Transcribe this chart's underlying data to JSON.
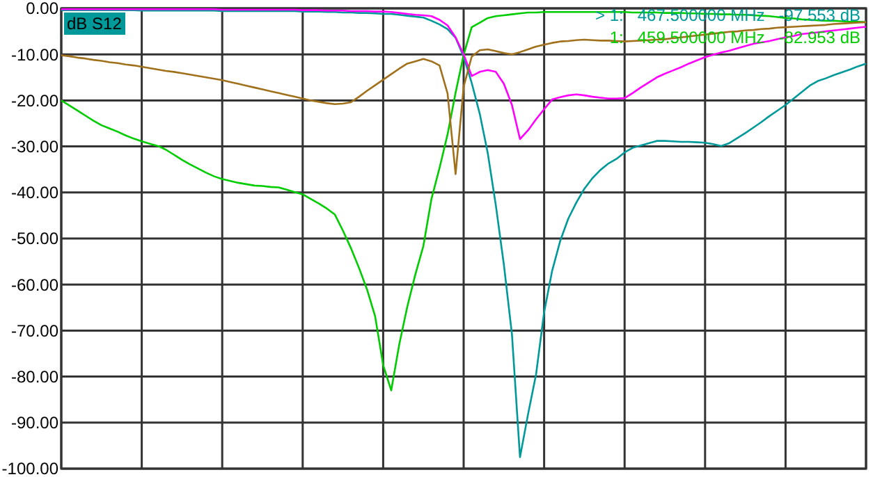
{
  "chart_data": {
    "type": "line",
    "ylim": [
      -100,
      0
    ],
    "categories": [
      null,
      null,
      null,
      null,
      null,
      null,
      null,
      null,
      null,
      null,
      null,
      null,
      null,
      null,
      null,
      null,
      null,
      null,
      null,
      null,
      null,
      null,
      null,
      null,
      null,
      null,
      null,
      null,
      null,
      null,
      null,
      null,
      null,
      null,
      null,
      null,
      null,
      null,
      null,
      null,
      null,
      null,
      null,
      null,
      null,
      null,
      null,
      null,
      null,
      null,
      null,
      null,
      null,
      null,
      null,
      null,
      null,
      null,
      null,
      null,
      null,
      null,
      null,
      null,
      null,
      null,
      null,
      null,
      null,
      null,
      null,
      null,
      null,
      null,
      null,
      null,
      null,
      null,
      null,
      null,
      null,
      null,
      null,
      null,
      null,
      null,
      null,
      null,
      null,
      null,
      null,
      null,
      null,
      null,
      null,
      null,
      null,
      null,
      null,
      null,
      null
    ],
    "yticks": [
      {
        "value": 0,
        "label": "0.00"
      },
      {
        "value": -10,
        "label": "-10.00"
      },
      {
        "value": -20,
        "label": "-20.00"
      },
      {
        "value": -30,
        "label": "-30.00"
      },
      {
        "value": -40,
        "label": "-40.00"
      },
      {
        "value": -50,
        "label": "-50.00"
      },
      {
        "value": -60,
        "label": "-60.00"
      },
      {
        "value": -70,
        "label": "-70.00"
      },
      {
        "value": -80,
        "label": "-80.00"
      },
      {
        "value": -90,
        "label": "-90.00"
      },
      {
        "value": -100,
        "label": "-100.00"
      }
    ],
    "tick_labels": "y",
    "grid": true,
    "marker": "none",
    "line_style": "solid",
    "series": [
      {
        "color": "#009999",
        "values": [
          -0.4,
          -0.4,
          -0.4,
          -0.4,
          -0.4,
          -0.4,
          -0.4,
          -0.4,
          -0.4,
          -0.4,
          -0.5,
          -0.5,
          -0.5,
          -0.5,
          -0.5,
          -0.5,
          -0.5,
          -0.5,
          -0.5,
          -0.5,
          -0.6,
          -0.6,
          -0.6,
          -0.6,
          -0.6,
          -0.6,
          -0.6,
          -0.6,
          -0.6,
          -0.6,
          -0.7,
          -0.7,
          -0.7,
          -0.8,
          -0.8,
          -0.9,
          -0.9,
          -1.0,
          -1.0,
          -1.1,
          -1.2,
          -1.2,
          -1.4,
          -1.6,
          -1.8,
          -2.0,
          -2.7,
          -3.5,
          -4.5,
          -6.4,
          -10.5,
          -16.2,
          -22.9,
          -31.5,
          -42.8,
          -55.7,
          -70.8,
          -97.5,
          -88.2,
          -79.5,
          -66,
          -57,
          -50.5,
          -45.7,
          -42.2,
          -39.2,
          -36.9,
          -35.1,
          -33.7,
          -32.7,
          -31.3,
          -30.3,
          -29.8,
          -29.3,
          -28.8,
          -28.8,
          -28.9,
          -29.0,
          -29.0,
          -29.1,
          -29.2,
          -29.5,
          -29.9,
          -29.3,
          -28.2,
          -27.1,
          -25.9,
          -24.7,
          -23.4,
          -22.2,
          -21,
          -19.6,
          -18.2,
          -16.8,
          -15.8,
          -15.2,
          -14.5,
          -13.9,
          -13.3,
          -12.6,
          -12
        ]
      },
      {
        "color": "#00cc00",
        "values": [
          -20,
          -21.1,
          -22.2,
          -23.3,
          -24.4,
          -25.4,
          -26.1,
          -26.8,
          -27.6,
          -28.3,
          -28.9,
          -29.4,
          -29.9,
          -30.7,
          -31.8,
          -32.9,
          -33.9,
          -34.8,
          -35.7,
          -36.5,
          -37.1,
          -37.5,
          -37.9,
          -38.2,
          -38.5,
          -38.6,
          -38.8,
          -38.9,
          -39.4,
          -39.9,
          -40.4,
          -41.4,
          -42.4,
          -43.5,
          -44.8,
          -48.3,
          -52.1,
          -56.4,
          -61.1,
          -66.9,
          -77.5,
          -83,
          -73,
          -64.8,
          -57.8,
          -51.6,
          -41.4,
          -34.7,
          -27.4,
          -18.3,
          -10.1,
          -4.1,
          -3.1,
          -2.1,
          -1.7,
          -1.5,
          -1.3,
          -1.1,
          -0.9,
          -0.9,
          -0.8,
          -0.8,
          -0.8,
          -0.8,
          -0.8,
          -0.8,
          -0.8,
          -0.8,
          -0.8,
          -0.8,
          -0.8,
          -0.9,
          -0.9,
          -0.9,
          -0.9,
          -1.0,
          -1.0,
          -1.0,
          -1.1,
          -1.1,
          -1.2,
          -1.2,
          -1.3,
          -1.3,
          -1.4,
          -1.4,
          -1.5,
          -1.6,
          -1.7,
          -1.9,
          -2.1,
          -2.2,
          -2.4,
          -2.5,
          -2.6,
          -2.7,
          -2.7,
          -2.8,
          -2.9,
          -2.9,
          -3
        ]
      },
      {
        "color": "#ff00ff",
        "values": [
          -0.2,
          -0.2,
          -0.2,
          -0.2,
          -0.2,
          -0.2,
          -0.2,
          -0.2,
          -0.2,
          -0.2,
          -0.2,
          -0.2,
          -0.2,
          -0.2,
          -0.2,
          -0.2,
          -0.2,
          -0.2,
          -0.2,
          -0.2,
          -0.3,
          -0.3,
          -0.3,
          -0.3,
          -0.3,
          -0.3,
          -0.3,
          -0.3,
          -0.3,
          -0.3,
          -0.4,
          -0.4,
          -0.4,
          -0.5,
          -0.5,
          -0.5,
          -0.6,
          -0.6,
          -0.6,
          -0.7,
          -0.7,
          -0.8,
          -1.0,
          -1.2,
          -1.4,
          -1.5,
          -1.7,
          -2.5,
          -3.7,
          -6.3,
          -10,
          -14.7,
          -13.8,
          -13.4,
          -13.8,
          -16.4,
          -21,
          -28.4,
          -26.5,
          -24.1,
          -21.9,
          -19.8,
          -19.3,
          -18.9,
          -18.7,
          -18.9,
          -19.2,
          -19.4,
          -19.6,
          -19.6,
          -19.5,
          -18.4,
          -17.2,
          -16.1,
          -15,
          -14.2,
          -13.5,
          -12.8,
          -12,
          -11.3,
          -10.6,
          -10.1,
          -9.6,
          -9.2,
          -8.7,
          -8.2,
          -7.7,
          -7.4,
          -7.1,
          -6.7,
          -6.3,
          -6,
          -5.6,
          -5.4,
          -5.2,
          -5.0,
          -4.8,
          -4.6,
          -4.4,
          -4.2,
          -4
        ]
      },
      {
        "color": "#a0701a",
        "values": [
          -10.2,
          -10.4,
          -10.7,
          -10.9,
          -11.2,
          -11.4,
          -11.7,
          -11.9,
          -12.2,
          -12.4,
          -12.7,
          -13,
          -13.3,
          -13.6,
          -13.8,
          -14.1,
          -14.4,
          -14.7,
          -15,
          -15.3,
          -15.6,
          -16,
          -16.4,
          -16.8,
          -17.2,
          -17.6,
          -18,
          -18.4,
          -18.8,
          -19.2,
          -19.6,
          -20,
          -20.3,
          -20.6,
          -20.8,
          -20.7,
          -20.4,
          -19.2,
          -17.9,
          -16.7,
          -15.5,
          -14.3,
          -13.1,
          -12,
          -11.5,
          -11,
          -11.5,
          -12.4,
          -18.5,
          -36,
          -17,
          -10.5,
          -9.1,
          -8.9,
          -9.3,
          -9.7,
          -10,
          -9.5,
          -8.9,
          -8.3,
          -7.9,
          -7.5,
          -7.2,
          -7.1,
          -6.9,
          -6.8,
          -6.9,
          -7,
          -7,
          -7.1,
          -7.2,
          -7.1,
          -7,
          -6.9,
          -6.8,
          -6.7,
          -6.5,
          -6.3,
          -6.1,
          -5.9,
          -5.7,
          -5.5,
          -5.3,
          -5.1,
          -5,
          -4.8,
          -4.7,
          -4.5,
          -4.4,
          -4.2,
          -4.1,
          -4,
          -3.9,
          -3.8,
          -3.7,
          -3.6,
          -3.4,
          -3.3,
          -3.2,
          -3.1,
          -3
        ]
      }
    ],
    "annotations": [
      "dB S12",
      "> 1:   467.500000 MHz   -97.553 dB",
      "1:   459.500000 MHz   -82.953 dB"
    ]
  }
}
